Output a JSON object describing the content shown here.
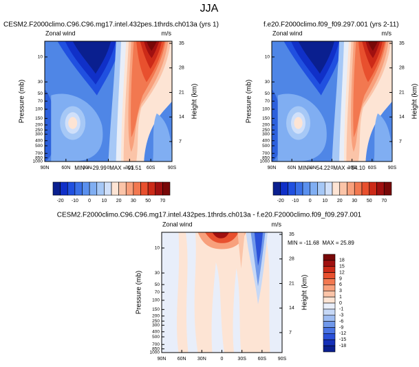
{
  "title": "JJA",
  "chart_data": [
    {
      "type": "contour",
      "title": "CESM2.F2000climo.C96.C96.mg17.intel.432pes.1thrds.ch013a (yrs 1)",
      "left_label": "Zonal wind",
      "right_label": "m/s",
      "ylabel": "Pressure (mb)",
      "y2label": "Height (km)",
      "stats": "MIN = -29.99  MAX = 91.51",
      "xlim": [
        90,
        -90
      ],
      "xticks": [
        {
          "value": 90,
          "label": "90N"
        },
        {
          "value": 60,
          "label": "60N"
        },
        {
          "value": 30,
          "label": "30N"
        },
        0,
        {
          "value": -30,
          "label": "30S"
        },
        {
          "value": -60,
          "label": "60S"
        },
        {
          "value": -90,
          "label": "90S"
        }
      ],
      "ylim": [
        1000,
        5
      ],
      "log_y": true,
      "yticks": [
        10,
        30,
        50,
        70,
        100,
        150,
        200,
        250,
        300,
        400,
        500,
        700,
        850,
        1000
      ],
      "y2lim": [
        1.3,
        35.6
      ],
      "y2ticks": [
        7,
        14,
        21,
        28,
        35
      ],
      "colorbar": {
        "orientation": "horizontal",
        "colors": [
          "#0a1f8f",
          "#1030c8",
          "#2050e0",
          "#3a70e8",
          "#5a90ee",
          "#80aef2",
          "#a6c8f6",
          "#d0e0fa",
          "#fde4d4",
          "#fbc4a8",
          "#f8a07c",
          "#f27850",
          "#e8502e",
          "#cc2a18",
          "#a01010",
          "#780808"
        ],
        "ticks": [
          -20,
          -10,
          0,
          10,
          20,
          30,
          50,
          70
        ]
      }
    },
    {
      "type": "contour",
      "title": "f.e20.F2000climo.f09_f09.297.001 (yrs 2-11)",
      "left_label": "Zonal wind",
      "right_label": "m/s",
      "ylabel": "Pressure (mb)",
      "y2label": "Height (km)",
      "stats": "MIN = -54.22  MAX = 94.10",
      "xlim": [
        90,
        -90
      ],
      "xticks": [
        {
          "value": 90,
          "label": "90N"
        },
        {
          "value": 60,
          "label": "60N"
        },
        {
          "value": 30,
          "label": "30N"
        },
        0,
        {
          "value": -30,
          "label": "30S"
        },
        {
          "value": -60,
          "label": "60S"
        },
        {
          "value": -90,
          "label": "90S"
        }
      ],
      "ylim": [
        1000,
        5
      ],
      "log_y": true,
      "yticks": [
        10,
        30,
        50,
        70,
        100,
        150,
        200,
        250,
        300,
        400,
        500,
        700,
        850,
        1000
      ],
      "y2lim": [
        1.3,
        35.6
      ],
      "y2ticks": [
        7,
        14,
        21,
        28,
        35
      ],
      "colorbar": {
        "orientation": "horizontal",
        "colors": [
          "#0a1f8f",
          "#1030c8",
          "#2050e0",
          "#3a70e8",
          "#5a90ee",
          "#80aef2",
          "#a6c8f6",
          "#d0e0fa",
          "#fde4d4",
          "#fbc4a8",
          "#f8a07c",
          "#f27850",
          "#e8502e",
          "#cc2a18",
          "#a01010",
          "#780808"
        ],
        "ticks": [
          -20,
          -10,
          0,
          10,
          20,
          30,
          50,
          70
        ]
      }
    },
    {
      "type": "contour",
      "title": "CESM2.F2000climo.C96.C96.mg17.intel.432pes.1thrds.ch013a - f.e20.F2000climo.f09_f09.297.001",
      "left_label": "Zonal wind",
      "right_label": "m/s",
      "ylabel": "Pressure (mb)",
      "y2label": "Height (km)",
      "stats": "MIN = -11.68  MAX = 25.89",
      "xlim": [
        90,
        -90
      ],
      "xticks": [
        {
          "value": 90,
          "label": "90N"
        },
        {
          "value": 60,
          "label": "60N"
        },
        {
          "value": 30,
          "label": "30N"
        },
        0,
        {
          "value": -30,
          "label": "30S"
        },
        {
          "value": -60,
          "label": "60S"
        },
        {
          "value": -90,
          "label": "90S"
        }
      ],
      "ylim": [
        1000,
        5
      ],
      "log_y": true,
      "yticks": [
        10,
        30,
        50,
        70,
        100,
        150,
        200,
        250,
        300,
        400,
        500,
        700,
        850,
        1000
      ],
      "y2lim": [
        1.3,
        35.6
      ],
      "y2ticks": [
        7,
        14,
        21,
        28,
        35
      ],
      "colorbar": {
        "orientation": "vertical",
        "colors": [
          "#780808",
          "#a01010",
          "#cc2a18",
          "#e8502e",
          "#f27850",
          "#f8a07c",
          "#fbc4a8",
          "#fde4d4",
          "#e8eefa",
          "#c6d8f6",
          "#9ebcf2",
          "#7098ea",
          "#4a74e4",
          "#2a50d8",
          "#1530b8",
          "#0a1f8f"
        ],
        "ticks": [
          18,
          15,
          12,
          9,
          6,
          3,
          1,
          0,
          -1,
          -3,
          -6,
          -9,
          -12,
          -15,
          -18
        ]
      }
    }
  ]
}
